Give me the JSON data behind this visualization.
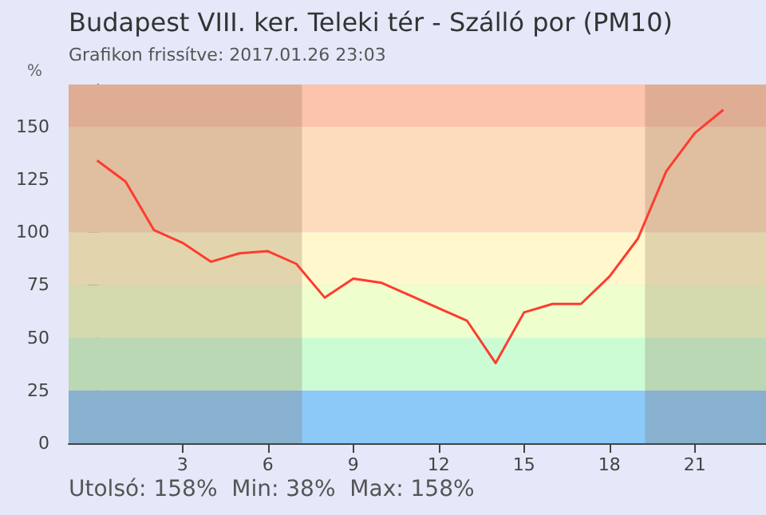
{
  "chart_data": {
    "type": "line",
    "title": "Budapest VIII. ker. Teleki tér - Szálló por (PM10)",
    "subtitle": "Grafikon frissítve: 2017.01.26 23:03",
    "ylabel": "%",
    "annotations": [
      "Utolsó: 158%  Min: 38%  Max: 158%"
    ],
    "x": [
      0,
      1,
      2,
      3,
      4,
      5,
      6,
      7,
      8,
      9,
      10,
      11,
      12,
      13,
      14,
      15,
      16,
      17,
      18,
      19,
      20,
      21,
      22
    ],
    "series": [
      {
        "color": "#ff3b30",
        "values": [
          134,
          124,
          101,
          95,
          86,
          90,
          91,
          85,
          69,
          78,
          76,
          70,
          64,
          58,
          38,
          62,
          66,
          66,
          79,
          97,
          129,
          147,
          158
        ]
      }
    ],
    "xlim": [
      -1,
      23.5
    ],
    "xticks": [
      3,
      6,
      9,
      12,
      15,
      18,
      21
    ],
    "ylim": [
      0,
      170
    ],
    "yticks": [
      0,
      25,
      50,
      75,
      100,
      125,
      150
    ],
    "bands": [
      {
        "axis": "y",
        "from": 0,
        "to": 25,
        "color": "#8cc8f8"
      },
      {
        "axis": "y",
        "from": 25,
        "to": 50,
        "color": "#ccfcd4"
      },
      {
        "axis": "y",
        "from": 50,
        "to": 75,
        "color": "#eefecc"
      },
      {
        "axis": "y",
        "from": 75,
        "to": 100,
        "color": "#fff8cc"
      },
      {
        "axis": "y",
        "from": 100,
        "to": 150,
        "color": "#fcdcbc"
      },
      {
        "axis": "y",
        "from": 150,
        "to": 170,
        "color": "#fcc4ac"
      },
      {
        "axis": "x",
        "from": -1,
        "to": 7.2,
        "color": "#7a5a40"
      },
      {
        "axis": "x",
        "from": 19.25,
        "to": 23.5,
        "color": "#7a5a40"
      }
    ],
    "marker": "none",
    "line_style": "solid"
  }
}
